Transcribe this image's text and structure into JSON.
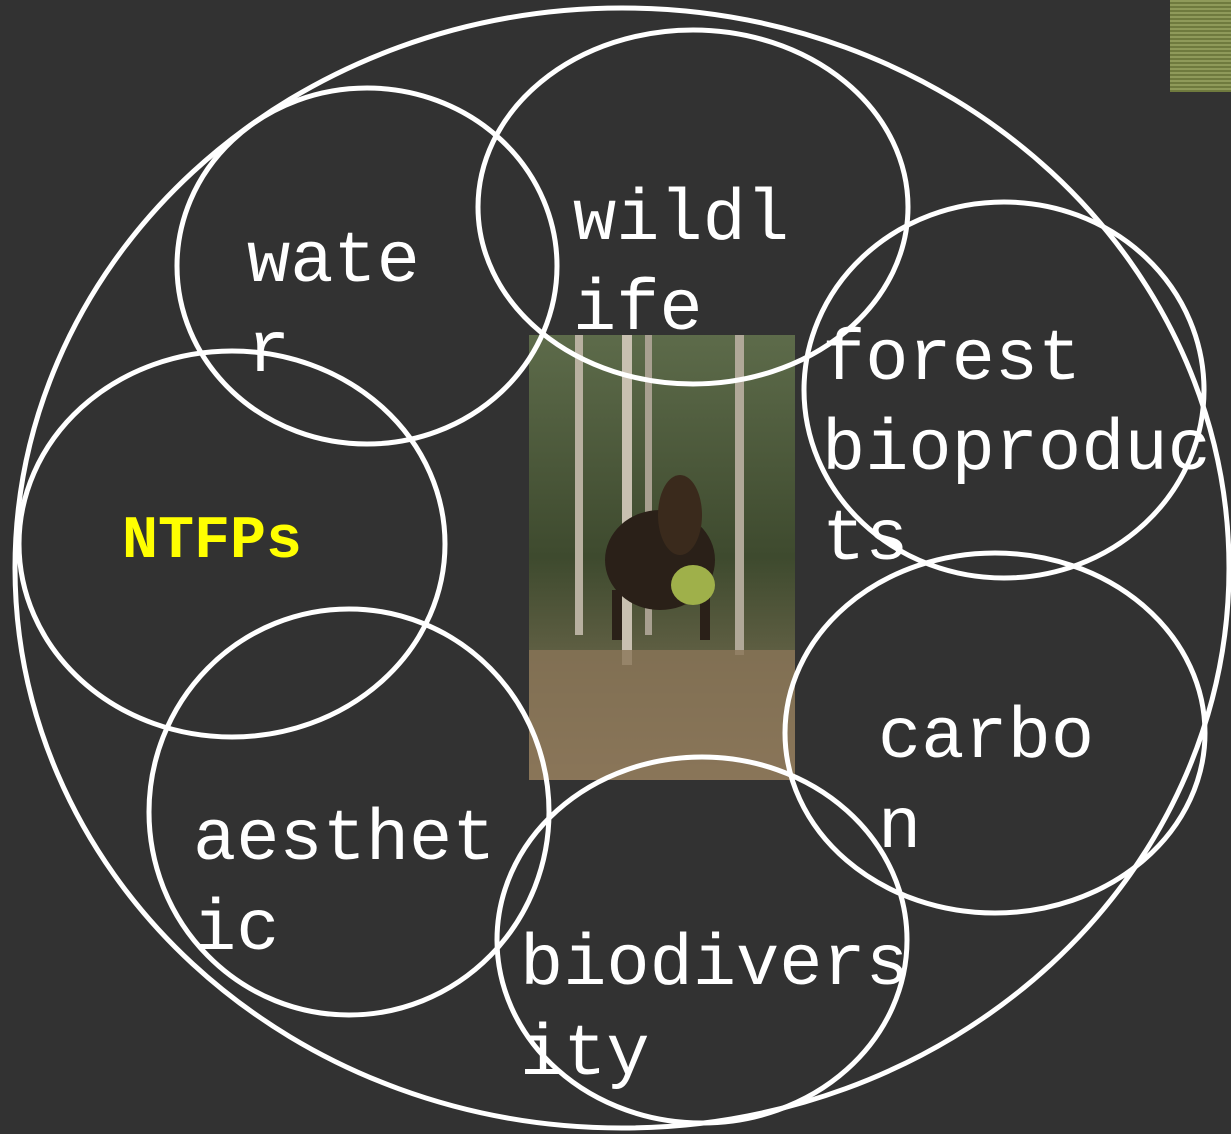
{
  "nodes": [
    {
      "label": "water"
    },
    {
      "label": "wildlife"
    },
    {
      "label": "forest bioproducts"
    },
    {
      "label": "NTFPs"
    },
    {
      "label": "carbon"
    },
    {
      "label": "aesthetic"
    },
    {
      "label": "biodiversity"
    }
  ]
}
